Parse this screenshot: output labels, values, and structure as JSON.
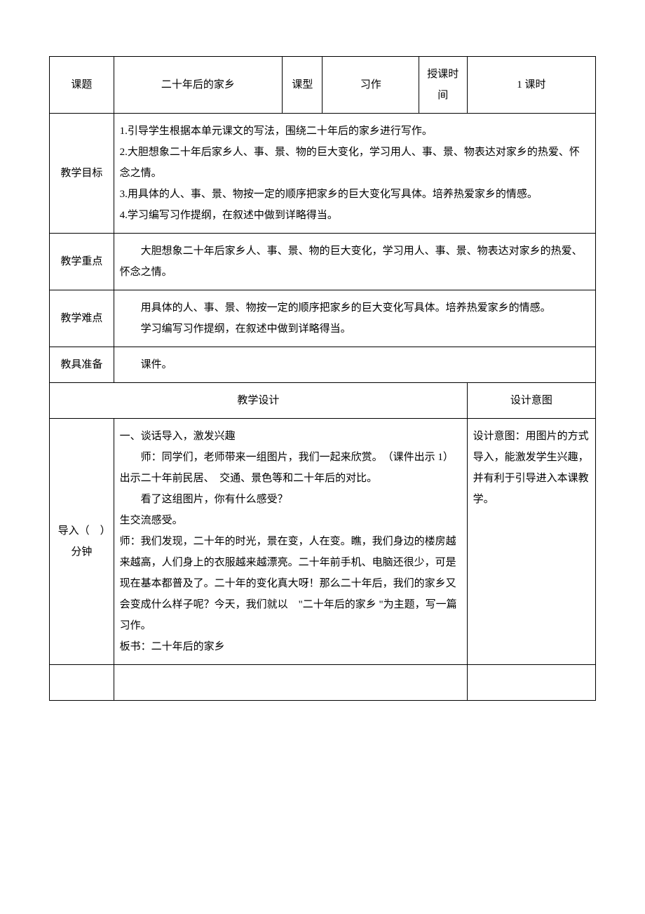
{
  "header": {
    "topic_label": "课题",
    "topic_value": "二十年后的家乡",
    "type_label": "课型",
    "type_value": "习作",
    "time_label": "授课时间",
    "duration": "1 课时"
  },
  "goals": {
    "label": "教学目标",
    "line1": "1.引导学生根据本单元课文的写法，围绕二十年后的家乡进行写作。",
    "line2": "2.大胆想象二十年后家乡人、事、景、物的巨大变化，学习用人、事、景、物表达对家乡的热爱、怀念之情。",
    "line3": "3.用具体的人、事、景、物按一定的顺序把家乡的巨大变化写具体。培养热爱家乡的情感。",
    "line4": "4.学习编写习作提纲，在叙述中做到详略得当。"
  },
  "keypoint": {
    "label": "教学重点",
    "text": "大胆想象二十年后家乡人、事、景、物的巨大变化，学习用人、事、景、物表达对家乡的热爱、怀念之情。"
  },
  "difficulty": {
    "label": "教学难点",
    "line1": "用具体的人、事、景、物按一定的顺序把家乡的巨大变化写具体。培养热爱家乡的情感。",
    "line2": "学习编写习作提纲，在叙述中做到详略得当。"
  },
  "materials": {
    "label": "教具准备",
    "text": "课件。"
  },
  "design_header": {
    "left": "教学设计",
    "right": "设计意图"
  },
  "intro": {
    "label": "导入（　）分钟",
    "content": {
      "l1": "一、谈话导入，激发兴趣",
      "l2": "师：同学们，老师带来一组图片，我们一起来欣赏。　（课件出示 1）出示二十年前民居、　交通、景色等和二十年后的对比。",
      "l3": "看了这组图片，你有什么感受？",
      "l4": "生交流感受。",
      "l5": "师：我们发现，二十年的时光，景在变，人在变。瞧，我们身边的楼房越来越高，人们身上的衣服越来越漂亮。二十年前手机、电脑还很少，可是现在基本都普及了。二十年的变化真大呀！那么二十年后，我们的家乡又会变成什么样子呢？今天，我们就以　\"二十年后的家乡 \"为主题，写一篇习作。",
      "l6": "板书：二十年后的家乡"
    },
    "intent": "设计意图：用图片的方式导入，能激发学生兴趣，并有利于引导进入本课教学。"
  }
}
